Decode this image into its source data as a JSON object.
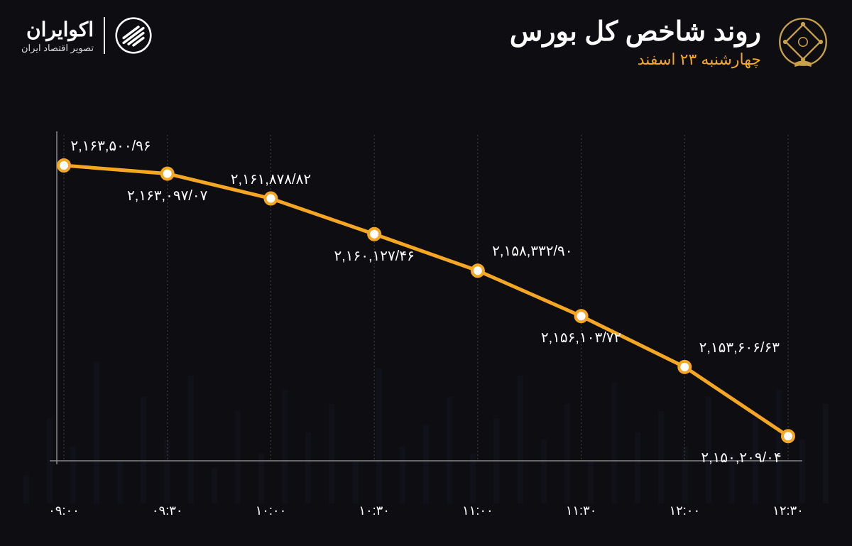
{
  "header": {
    "title": "روند شاخص کل بورس",
    "subtitle": "چهارشنبه ۲۳ اسفند"
  },
  "brand": {
    "name": "اکوایران",
    "tagline": "تصویر اقتصاد ایران"
  },
  "chart": {
    "type": "line",
    "line_color": "#f5a623",
    "line_width": 5,
    "marker_fill": "#ffffff",
    "marker_stroke": "#f5a623",
    "marker_radius": 8,
    "grid_color": "#444444",
    "axis_color": "#888888",
    "background_color": "#0d0d12",
    "label_color": "#ffffff",
    "label_fontsize": 20,
    "xlabel_fontsize": 18,
    "y_min": 2149000,
    "y_max": 2165000,
    "x_labels": [
      "۰۹:۰۰",
      "۰۹:۳۰",
      "۱۰:۰۰",
      "۱۰:۳۰",
      "۱۱:۰۰",
      "۱۱:۳۰",
      "۱۲:۰۰",
      "۱۲:۳۰"
    ],
    "points": [
      {
        "x": 0,
        "value": 2163500.96,
        "label": "۲,۱۶۳,۵۰۰/۹۶",
        "label_pos": "above"
      },
      {
        "x": 1,
        "value": 2163097.07,
        "label": "۲,۱۶۳,۰۹۷/۰۷",
        "label_pos": "below"
      },
      {
        "x": 2,
        "value": 2161878.82,
        "label": "۲,۱۶۱,۸۷۸/۸۲",
        "label_pos": "above"
      },
      {
        "x": 3,
        "value": 2160127.46,
        "label": "۲,۱۶۰,۱۲۷/۴۶",
        "label_pos": "below"
      },
      {
        "x": 4,
        "value": 2158332.9,
        "label": "۲,۱۵۸,۳۳۲/۹۰",
        "label_pos": "above"
      },
      {
        "x": 5,
        "value": 2156103.72,
        "label": "۲,۱۵۶,۱۰۳/۷۲",
        "label_pos": "below"
      },
      {
        "x": 6,
        "value": 2153606.63,
        "label": "۲,۱۵۳,۶۰۶/۶۳",
        "label_pos": "above"
      },
      {
        "x": 7,
        "value": 2150209.04,
        "label": "۲,۱۵۰,۲۰۹/۰۴",
        "label_pos": "below"
      }
    ],
    "bg_bars": [
      40,
      120,
      80,
      200,
      60,
      150,
      90,
      180,
      50,
      130,
      70,
      160,
      100,
      140,
      60,
      190,
      80,
      110,
      150,
      70,
      120,
      180,
      90,
      140,
      60,
      170,
      100,
      130,
      80,
      150,
      70,
      120,
      160,
      90,
      140
    ]
  }
}
